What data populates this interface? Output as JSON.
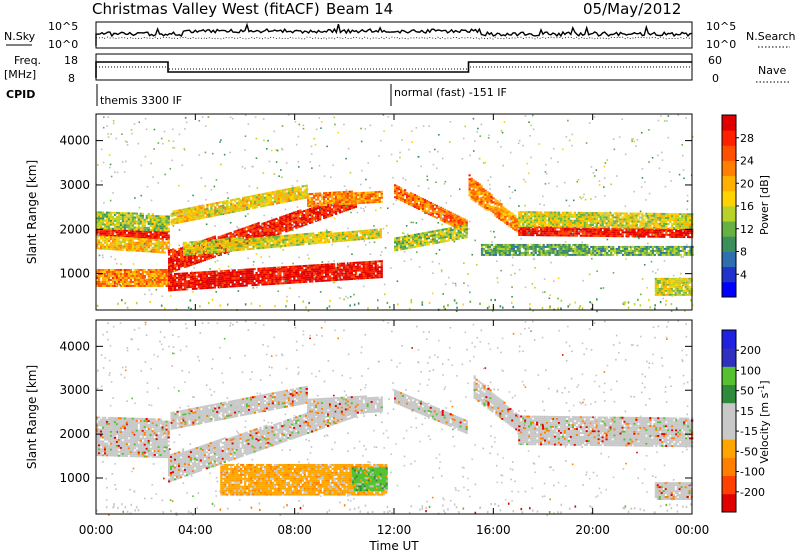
{
  "header": {
    "station": "Christmas Valley West (fitACF)",
    "beam": "Beam 14",
    "date": "05/May/2012"
  },
  "top_strip": {
    "left_label": "N.Sky",
    "right_label": "N.Search",
    "ticks_left": [
      "10^5",
      "10^0"
    ],
    "ticks_right": [
      "10^5",
      "10^0"
    ]
  },
  "freq_strip": {
    "left_label_1": "Freq.",
    "left_label_2": "[MHz]",
    "right_label": "Nave",
    "ticks_left": [
      "18",
      "8"
    ],
    "ticks_right": [
      "60",
      "0"
    ]
  },
  "cpid": {
    "label": "CPID",
    "segments": [
      {
        "start_hour": 0,
        "text": "themis 3300 IF"
      },
      {
        "start_hour": 12,
        "text": "normal (fast) -151 IF"
      }
    ]
  },
  "colors": {
    "ink": "#000000",
    "power_scale": [
      "#0000ff",
      "#2233cc",
      "#2f6fb0",
      "#3a8f5a",
      "#66b044",
      "#b8d22a",
      "#ffd200",
      "#ffb000",
      "#ff8000",
      "#ff5000",
      "#ff2000",
      "#e00000"
    ],
    "velocity_scale": [
      "#e00000",
      "#ff4000",
      "#ff8000",
      "#ffa500",
      "#c8c8c8",
      "#c8c8c8",
      "#2e8b3c",
      "#55c030",
      "#3030c0",
      "#2020e0"
    ],
    "gray_scatter": "#c0c0c0"
  },
  "chart_data": [
    {
      "type": "heatmap",
      "name": "power-panel",
      "ylabel": "Slant Range [km]",
      "xlim": [
        0,
        24
      ],
      "ylim": [
        180,
        4600
      ],
      "yticks": [
        1000,
        2000,
        3000,
        4000
      ],
      "colorbar": {
        "label": "Power [dB]",
        "range": [
          0,
          32
        ],
        "ticks": [
          4,
          8,
          12,
          16,
          20,
          24,
          28
        ]
      },
      "bands": [
        {
          "t0": 0.0,
          "t1": 2.9,
          "r0": 1850,
          "r1": 2000,
          "r0b": 1750,
          "r1b": 1950,
          "level": 0.92
        },
        {
          "t0": 0.0,
          "t1": 2.9,
          "r0": 1550,
          "r1": 1850,
          "r0b": 1450,
          "r1b": 1750,
          "level": 0.6
        },
        {
          "t0": 0.0,
          "t1": 2.9,
          "r0": 2000,
          "r1": 2400,
          "r0b": 1950,
          "r1b": 2300,
          "level": 0.45
        },
        {
          "t0": 0.0,
          "t1": 2.9,
          "r0": 700,
          "r1": 1100,
          "r0b": 700,
          "r1b": 1100,
          "level": 0.7
        },
        {
          "t0": 2.9,
          "t1": 11.5,
          "r0": 600,
          "r1": 1000,
          "r0b": 900,
          "r1b": 1300,
          "level": 0.95
        },
        {
          "t0": 2.9,
          "t1": 10.5,
          "r0": 1000,
          "r1": 1500,
          "r0b": 2500,
          "r1b": 2800,
          "level": 0.9
        },
        {
          "t0": 3.0,
          "t1": 8.5,
          "r0": 2100,
          "r1": 2400,
          "r0b": 2700,
          "r1b": 3000,
          "level": 0.55
        },
        {
          "t0": 3.5,
          "t1": 11.5,
          "r0": 1400,
          "r1": 1700,
          "r0b": 1800,
          "r1b": 2000,
          "level": 0.5
        },
        {
          "t0": 8.5,
          "t1": 11.5,
          "r0": 2500,
          "r1": 2800,
          "r0b": 2600,
          "r1b": 2850,
          "level": 0.7
        },
        {
          "t0": 12.0,
          "t1": 14.9,
          "r0": 2700,
          "r1": 3000,
          "r0b": 1900,
          "r1b": 2200,
          "level": 0.75
        },
        {
          "t0": 12.0,
          "t1": 14.9,
          "r0": 1500,
          "r1": 1800,
          "r0b": 1800,
          "r1b": 2100,
          "level": 0.45
        },
        {
          "t0": 15.0,
          "t1": 17.0,
          "r0": 2700,
          "r1": 3200,
          "r0b": 1900,
          "r1b": 2200,
          "level": 0.7
        },
        {
          "t0": 17.0,
          "t1": 24.0,
          "r0": 1850,
          "r1": 2050,
          "r0b": 1800,
          "r1b": 2000,
          "level": 0.93
        },
        {
          "t0": 17.0,
          "t1": 24.0,
          "r0": 2050,
          "r1": 2400,
          "r0b": 2000,
          "r1b": 2350,
          "level": 0.5
        },
        {
          "t0": 15.5,
          "t1": 24.0,
          "r0": 1400,
          "r1": 1650,
          "r0b": 1400,
          "r1b": 1600,
          "level": 0.35
        },
        {
          "t0": 22.5,
          "t1": 24.0,
          "r0": 500,
          "r1": 900,
          "r0b": 500,
          "r1b": 900,
          "level": 0.5
        }
      ]
    },
    {
      "type": "heatmap",
      "name": "velocity-panel",
      "ylabel": "Slant Range [km]",
      "xlabel": "Time UT",
      "xlim": [
        0,
        24
      ],
      "ylim": [
        180,
        4600
      ],
      "yticks": [
        1000,
        2000,
        3000,
        4000
      ],
      "xticks": [
        "00:00",
        "04:00",
        "08:00",
        "12:00",
        "16:00",
        "20:00",
        "00:00"
      ],
      "colorbar": {
        "label": "Velocity [m s^-1]",
        "ticks": [
          "200",
          "100",
          "50",
          "15",
          "-15",
          "-50",
          "-100",
          "-200"
        ]
      },
      "bands": [
        {
          "t0": 0.0,
          "t1": 2.9,
          "r0": 1500,
          "r1": 2400,
          "r0b": 1450,
          "r1b": 2300,
          "level": 0.45
        },
        {
          "t0": 2.9,
          "t1": 10.5,
          "r0": 900,
          "r1": 1500,
          "r0b": 2400,
          "r1b": 2800,
          "level": 0.45
        },
        {
          "t0": 3.0,
          "t1": 8.5,
          "r0": 2100,
          "r1": 2500,
          "r0b": 2700,
          "r1b": 3100,
          "level": 0.35
        },
        {
          "t0": 8.5,
          "t1": 11.5,
          "r0": 2400,
          "r1": 2800,
          "r0b": 2500,
          "r1b": 2850,
          "level": 0.45
        },
        {
          "t0": 5.0,
          "t1": 11.7,
          "r0": 600,
          "r1": 1300,
          "r0b": 600,
          "r1b": 1300,
          "level": 0.3
        },
        {
          "t0": 10.3,
          "t1": 11.7,
          "r0": 700,
          "r1": 1200,
          "r0b": 700,
          "r1b": 1200,
          "level": 0.75
        },
        {
          "t0": 12.0,
          "t1": 14.9,
          "r0": 2700,
          "r1": 3000,
          "r0b": 2000,
          "r1b": 2300,
          "level": 0.45
        },
        {
          "t0": 15.2,
          "t1": 17.2,
          "r0": 2800,
          "r1": 3300,
          "r0b": 1950,
          "r1b": 2300,
          "level": 0.45
        },
        {
          "t0": 17.0,
          "t1": 24.0,
          "r0": 1750,
          "r1": 2400,
          "r0b": 1700,
          "r1b": 2350,
          "level": 0.45
        },
        {
          "t0": 22.5,
          "t1": 24.0,
          "r0": 500,
          "r1": 900,
          "r0b": 500,
          "r1b": 900,
          "level": 0.45
        }
      ]
    }
  ]
}
